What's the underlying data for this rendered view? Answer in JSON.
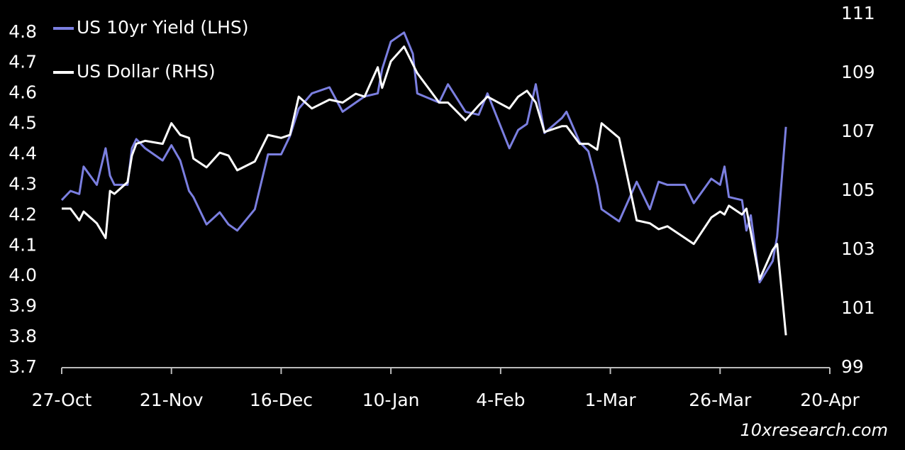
{
  "chart_data": {
    "type": "line",
    "legend": "upper left",
    "source": "10xresearch.com",
    "x": [
      "27-Oct",
      "29-Oct",
      "31-Oct",
      "1-Nov",
      "4-Nov",
      "6-Nov",
      "7-Nov",
      "8-Nov",
      "11-Nov",
      "12-Nov",
      "13-Nov",
      "15-Nov",
      "19-Nov",
      "21-Nov",
      "23-Nov",
      "25-Nov",
      "26-Nov",
      "29-Nov",
      "2-Dec",
      "4-Dec",
      "6-Dec",
      "10-Dec",
      "13-Dec",
      "16-Dec",
      "18-Dec",
      "20-Dec",
      "23-Dec",
      "27-Dec",
      "30-Dec",
      "2-Jan",
      "4-Jan",
      "7-Jan",
      "8-Jan",
      "10-Jan",
      "13-Jan",
      "15-Jan",
      "16-Jan",
      "21-Jan",
      "23-Jan",
      "27-Jan",
      "30-Jan",
      "1-Feb",
      "6-Feb",
      "8-Feb",
      "10-Feb",
      "12-Feb",
      "14-Feb",
      "18-Feb",
      "19-Feb",
      "22-Feb",
      "24-Feb",
      "26-Feb",
      "27-Feb",
      "3-Mar",
      "7-Mar",
      "10-Mar",
      "12-Mar",
      "14-Mar",
      "18-Mar",
      "20-Mar",
      "24-Mar",
      "26-Mar",
      "27-Mar",
      "28-Mar",
      "31-Mar",
      "1-Apr",
      "2-Apr",
      "4-Apr",
      "7-Apr",
      "8-Apr",
      "10-Apr"
    ],
    "xlim": [
      "27-Oct",
      "20-Apr"
    ],
    "xticks": [
      "27-Oct",
      "21-Nov",
      "16-Dec",
      "10-Jan",
      "4-Feb",
      "1-Mar",
      "26-Mar",
      "20-Apr"
    ],
    "ylim": [
      3.7,
      4.86
    ],
    "yticks": [
      3.7,
      3.8,
      3.9,
      {
        "value": 4,
        "label": "4.0"
      },
      4.1,
      4.2,
      4.3,
      4.4,
      4.5,
      4.6,
      4.7,
      4.8
    ],
    "y2lim": [
      99,
      111
    ],
    "y2ticks": [
      99,
      101,
      103,
      105,
      107,
      109,
      111
    ],
    "series": [
      {
        "name": "US 10yr Yield (LHS)",
        "color": "#7b7fe0",
        "values": [
          4.25,
          4.28,
          4.27,
          4.36,
          4.3,
          4.42,
          4.33,
          4.3,
          4.3,
          4.42,
          4.45,
          4.42,
          4.38,
          4.43,
          4.38,
          4.28,
          4.26,
          4.17,
          4.21,
          4.17,
          4.15,
          4.22,
          4.4,
          4.4,
          4.46,
          4.55,
          4.6,
          4.62,
          4.54,
          4.57,
          4.59,
          4.6,
          4.68,
          4.77,
          4.8,
          4.73,
          4.6,
          4.57,
          4.63,
          4.54,
          4.53,
          4.6,
          4.42,
          4.48,
          4.5,
          4.63,
          4.47,
          4.52,
          4.54,
          4.44,
          4.41,
          4.3,
          4.22,
          4.18,
          4.31,
          4.22,
          4.31,
          4.3,
          4.3,
          4.24,
          4.32,
          4.3,
          4.36,
          4.26,
          4.25,
          4.15,
          4.2,
          3.98,
          4.05,
          4.13,
          4.49
        ]
      },
      {
        "name": "US Dollar (RHS)",
        "color": "#ffffff",
        "axis": "y2",
        "values": [
          104.4,
          104.4,
          104.0,
          104.3,
          103.9,
          103.4,
          105.0,
          104.9,
          105.3,
          106.2,
          106.6,
          106.7,
          106.6,
          107.3,
          106.9,
          106.8,
          106.1,
          105.8,
          106.3,
          106.2,
          105.7,
          106.0,
          106.9,
          106.8,
          106.9,
          108.2,
          107.8,
          108.1,
          108.0,
          108.3,
          108.2,
          109.2,
          108.5,
          109.4,
          109.9,
          109.3,
          109.0,
          108.0,
          108.0,
          107.4,
          107.9,
          108.2,
          107.8,
          108.2,
          108.4,
          108.0,
          107.0,
          107.2,
          107.2,
          106.6,
          106.6,
          106.4,
          107.3,
          106.8,
          104.0,
          103.9,
          103.7,
          103.8,
          103.4,
          103.2,
          104.1,
          104.3,
          104.2,
          104.5,
          104.2,
          104.4,
          103.6,
          102.0,
          103.0,
          103.2,
          100.1
        ]
      }
    ]
  }
}
